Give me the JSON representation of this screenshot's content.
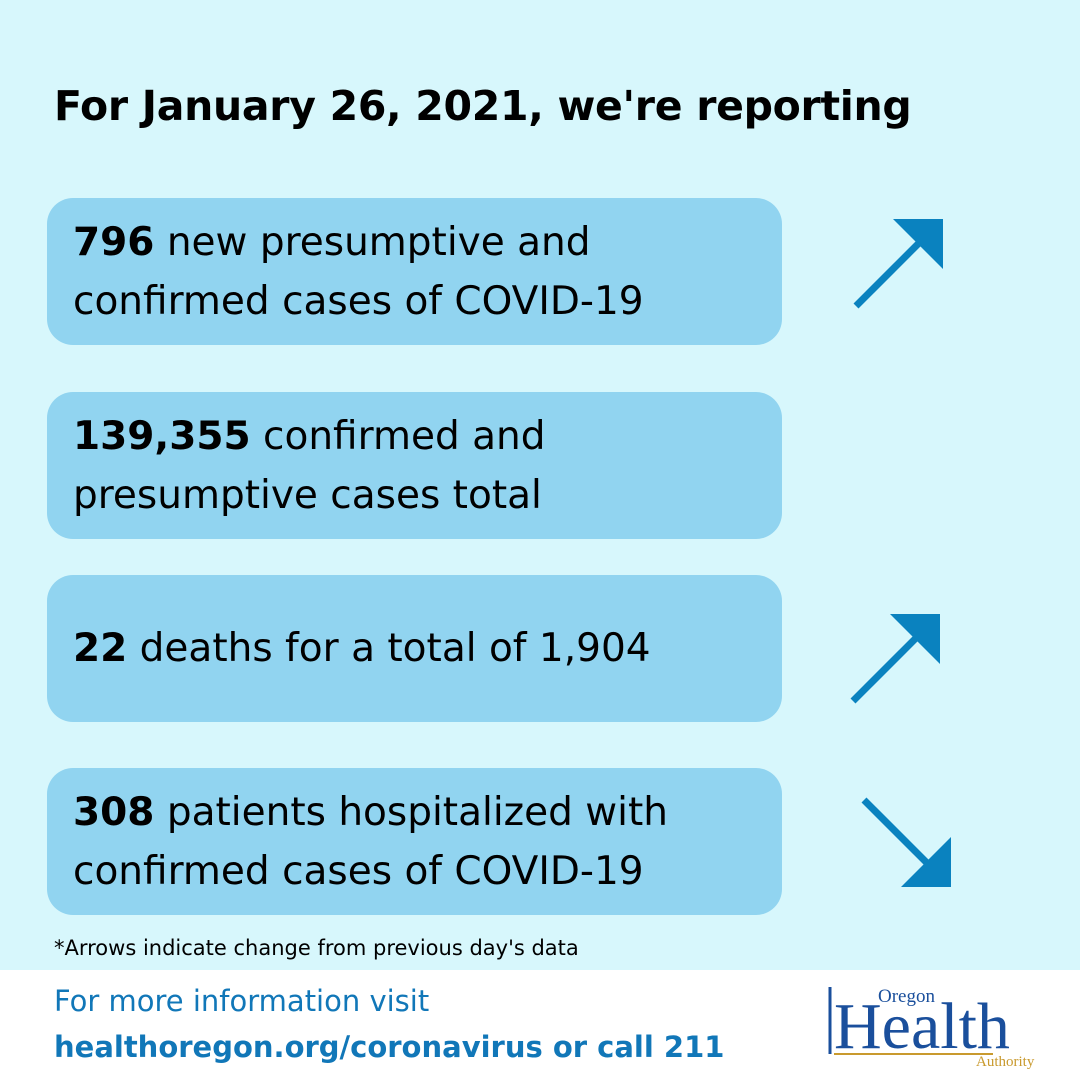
{
  "headline": "For January 26, 2021, we're reporting",
  "cards": [
    {
      "number": "796",
      "text_line1": " new presumptive and",
      "text_line2": "confirmed cases of COVID-19",
      "trend": "up"
    },
    {
      "number": "139,355",
      "text_line1": " confirmed and",
      "text_line2": "presumptive cases total",
      "trend": "none"
    },
    {
      "number": "22",
      "text_line1": " deaths for a total of 1,904",
      "text_line2": "",
      "trend": "up"
    },
    {
      "number": "308",
      "text_line1": " patients hospitalized with",
      "text_line2": "confirmed cases of COVID-19",
      "trend": "down"
    }
  ],
  "note": "*Arrows indicate change from previous day's data",
  "footer": {
    "more_info": "For more information visit",
    "link": "healthoregon.org/coronavirus or call 211"
  },
  "logo": {
    "top": "Oregon",
    "main": "Health",
    "bottom": "Authority"
  },
  "colors": {
    "background": "#d7f7fc",
    "card": "#91d4f0",
    "arrow": "#0a82bf",
    "link": "#1177b8",
    "logo_blue": "#1a4f9c",
    "logo_gold": "#c99a2e"
  },
  "icons": [
    "arrow-up-right-icon",
    "arrow-down-right-icon"
  ]
}
